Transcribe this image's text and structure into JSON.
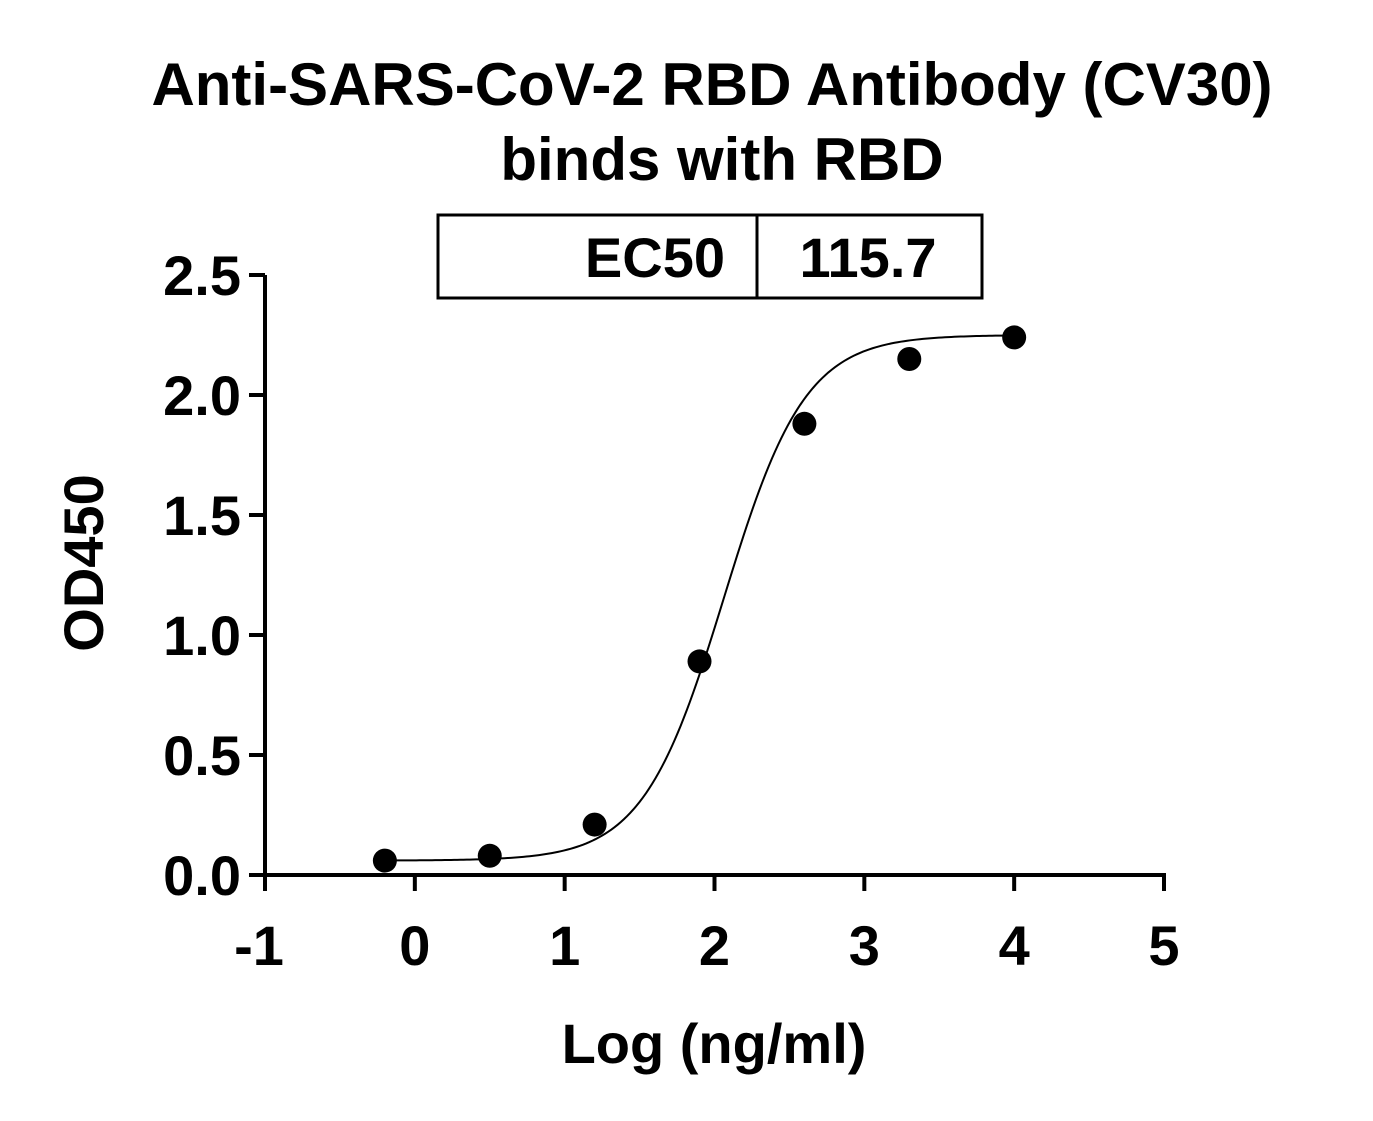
{
  "chart_data": {
    "type": "scatter",
    "title": "Anti-SARS-CoV-2 RBD Antibody (CV30)",
    "subtitle": "binds with RBD",
    "xlabel": "Log (ng/ml)",
    "ylabel": "OD450",
    "xlim": [
      -1,
      5
    ],
    "ylim": [
      0,
      2.5
    ],
    "x_ticks": [
      "-1",
      "0",
      "1",
      "2",
      "3",
      "4",
      "5"
    ],
    "y_ticks": [
      "0.0",
      "0.5",
      "1.0",
      "1.5",
      "2.0",
      "2.5"
    ],
    "grid": false,
    "legend": "none",
    "series": [
      {
        "x": [
          -0.2,
          0.5,
          1.2,
          1.9,
          2.6,
          3.3,
          4.0
        ],
        "y": [
          0.06,
          0.08,
          0.21,
          0.89,
          1.88,
          2.15,
          2.24
        ],
        "fit": "four-parameter logistic curve"
      }
    ],
    "fit_params": {
      "bottom": 0.06,
      "top": 2.25,
      "log_ec50": 2.063,
      "hill": 1.6
    },
    "ec50_table": {
      "label": "EC50",
      "value": "115.7"
    },
    "colors": {
      "points": "#000000",
      "curve": "#000000",
      "axes": "#000000"
    }
  }
}
